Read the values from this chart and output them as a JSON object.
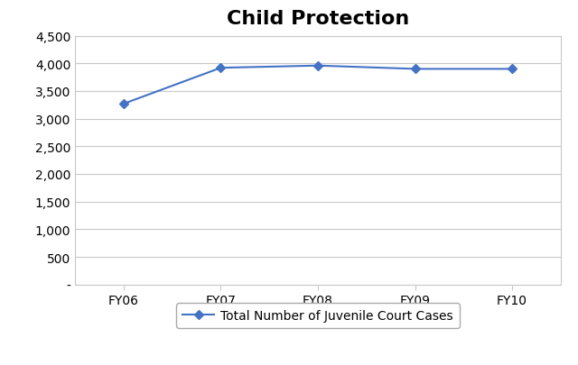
{
  "title": "Child Protection",
  "categories": [
    "FY06",
    "FY07",
    "FY08",
    "FY09",
    "FY10"
  ],
  "values": [
    3270,
    3920,
    3960,
    3900,
    3900
  ],
  "line_color": "#4472C4",
  "marker": "D",
  "marker_size": 5,
  "ylim": [
    0,
    4500
  ],
  "yticks": [
    0,
    500,
    1000,
    1500,
    2000,
    2500,
    3000,
    3500,
    4000,
    4500
  ],
  "ytick_labels": [
    "-",
    "500",
    "1,000",
    "1,500",
    "2,000",
    "2,500",
    "3,000",
    "3,500",
    "4,000",
    "4,500"
  ],
  "legend_label": "Total Number of Juvenile Court Cases",
  "title_fontsize": 16,
  "tick_fontsize": 10,
  "legend_fontsize": 10,
  "background_color": "#ffffff",
  "grid_color": "#c8c8c8",
  "border_color": "#c8c8c8"
}
